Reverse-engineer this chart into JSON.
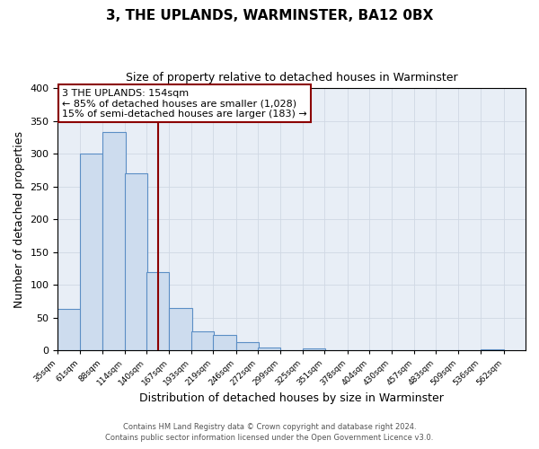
{
  "title": "3, THE UPLANDS, WARMINSTER, BA12 0BX",
  "subtitle": "Size of property relative to detached houses in Warminster",
  "xlabel": "Distribution of detached houses by size in Warminster",
  "ylabel": "Number of detached properties",
  "bar_left_edges": [
    35,
    61,
    88,
    114,
    140,
    167,
    193,
    219,
    246,
    272,
    299,
    325,
    351,
    378,
    404,
    430,
    457,
    483,
    509,
    536
  ],
  "bar_heights": [
    63,
    300,
    333,
    270,
    120,
    65,
    29,
    24,
    13,
    4,
    0,
    3,
    0,
    1,
    0,
    0,
    0,
    0,
    0,
    2
  ],
  "bin_width": 27,
  "tick_labels": [
    "35sqm",
    "61sqm",
    "88sqm",
    "114sqm",
    "140sqm",
    "167sqm",
    "193sqm",
    "219sqm",
    "246sqm",
    "272sqm",
    "299sqm",
    "325sqm",
    "351sqm",
    "378sqm",
    "404sqm",
    "430sqm",
    "457sqm",
    "483sqm",
    "509sqm",
    "536sqm",
    "562sqm"
  ],
  "bar_color_fill": "#cddcee",
  "bar_color_edge": "#5b8ec5",
  "property_size": 154,
  "vline_color": "#8b0000",
  "annotation_line1": "3 THE UPLANDS: 154sqm",
  "annotation_line2": "← 85% of detached houses are smaller (1,028)",
  "annotation_line3": "15% of semi-detached houses are larger (183) →",
  "annotation_box_color": "#8b0000",
  "grid_color": "#d0d8e4",
  "background_color": "#e8eef6",
  "ylim": [
    0,
    400
  ],
  "yticks": [
    0,
    50,
    100,
    150,
    200,
    250,
    300,
    350,
    400
  ],
  "footer_line1": "Contains HM Land Registry data © Crown copyright and database right 2024.",
  "footer_line2": "Contains public sector information licensed under the Open Government Licence v3.0."
}
